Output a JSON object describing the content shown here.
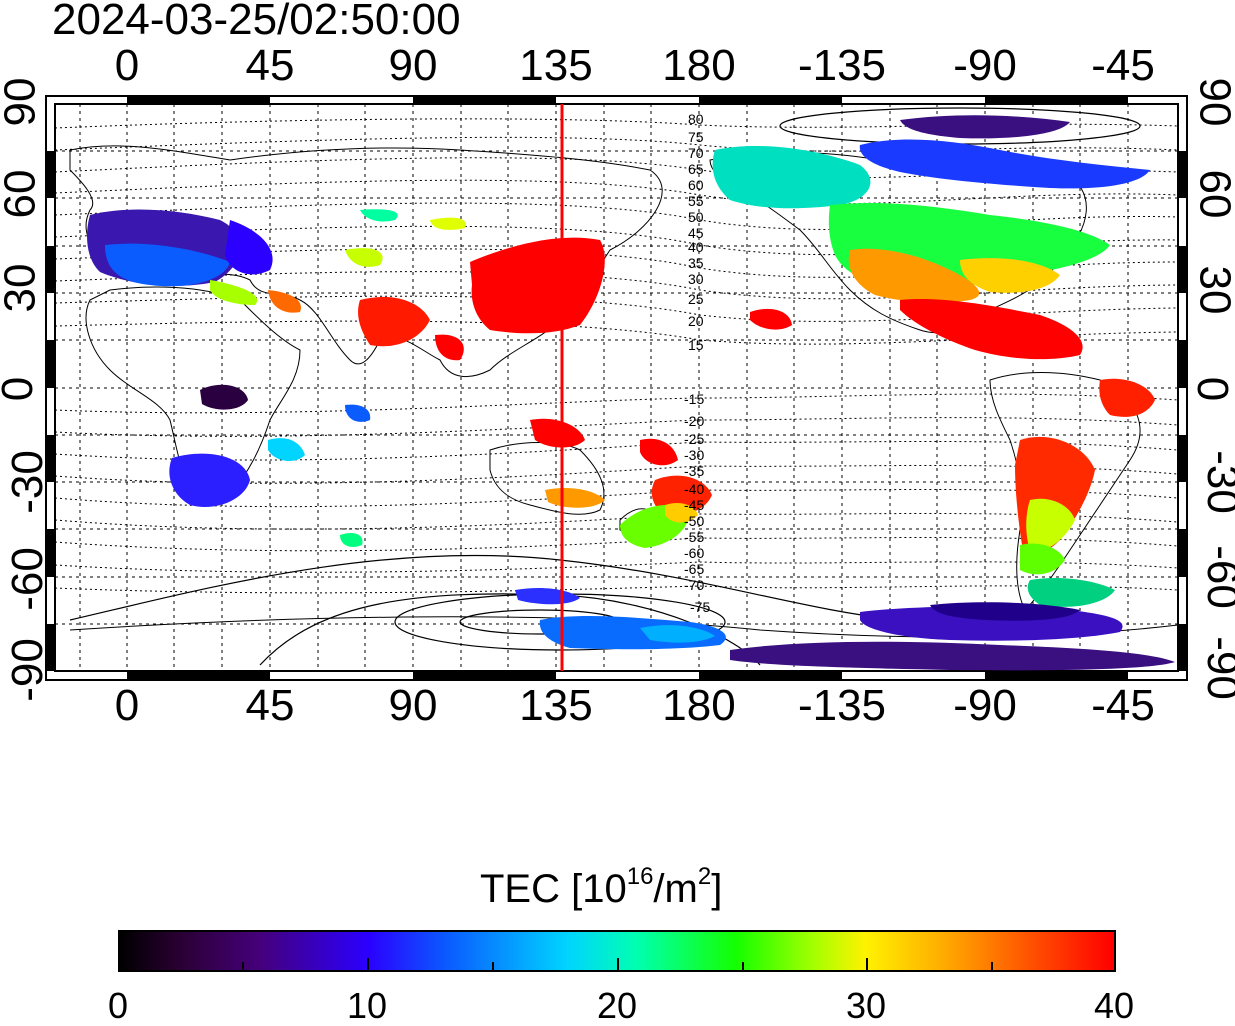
{
  "timestamp": "2024-03-25/02:50:00",
  "top_lon_labels": [
    "0",
    "45",
    "90",
    "135",
    "180",
    "-135",
    "-90",
    "-45"
  ],
  "bottom_lon_labels": [
    "0",
    "45",
    "90",
    "135",
    "180",
    "-135",
    "-90",
    "-45"
  ],
  "left_lat_labels": [
    "90",
    "60",
    "30",
    "0",
    "-30",
    "-60",
    "-90"
  ],
  "right_lat_labels": [
    "90",
    "60",
    "30",
    "0",
    "-30",
    "-60",
    "-90"
  ],
  "contour_labels_north": [
    "80",
    "75",
    "70",
    "65",
    "60",
    "55",
    "50",
    "45",
    "40",
    "35",
    "30",
    "25",
    "20",
    "15"
  ],
  "contour_labels_south": [
    "-15",
    "-20",
    "-25",
    "-30",
    "-35",
    "-40",
    "-45",
    "-50",
    "-55",
    "-60",
    "-65",
    "-70",
    "-75"
  ],
  "meridian_line": {
    "longitude": 137,
    "color": "#ff0000"
  },
  "colorbar": {
    "title_prefix": "TEC  [10",
    "title_sup1": "16",
    "title_mid": "/m",
    "title_sup2": "2",
    "title_suffix": "]",
    "min": 0,
    "max": 40,
    "tick_labels": [
      "0",
      "10",
      "20",
      "30",
      "40"
    ]
  },
  "colors": {
    "frame": "#000000",
    "grid": "#000000",
    "background": "#ffffff"
  }
}
